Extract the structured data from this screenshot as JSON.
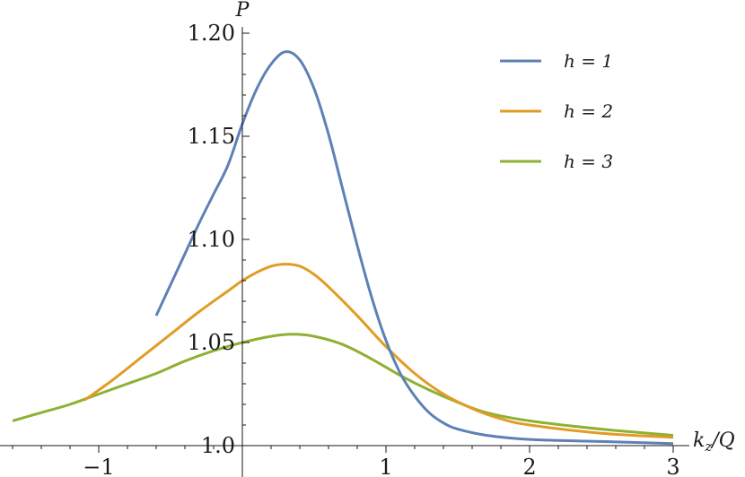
{
  "chart_data": {
    "type": "line",
    "xlabel": "k_z/Q",
    "ylabel": "P",
    "xlim": [
      -1.65,
      3.5
    ],
    "ylim": [
      0.99,
      1.205
    ],
    "x_ticks": [
      {
        "value": -1,
        "label": "−1"
      },
      {
        "value": 1,
        "label": "1"
      },
      {
        "value": 2,
        "label": "2"
      },
      {
        "value": 3,
        "label": "3"
      }
    ],
    "y_ticks": [
      {
        "value": 1.0,
        "label": "1.0"
      },
      {
        "value": 1.05,
        "label": "1.05"
      },
      {
        "value": 1.1,
        "label": "1.10"
      },
      {
        "value": 1.15,
        "label": "1.15"
      },
      {
        "value": 1.2,
        "label": "1.20"
      }
    ],
    "grid": false,
    "legend_position": "top-right",
    "series": [
      {
        "name": "h = 1",
        "color": "#5e81b5",
        "x": [
          -0.6,
          -0.5,
          -0.4,
          -0.3,
          -0.2,
          -0.1,
          0.0,
          0.1,
          0.2,
          0.3,
          0.4,
          0.5,
          0.6,
          0.7,
          0.8,
          0.9,
          1.0,
          1.1,
          1.2,
          1.3,
          1.4,
          1.5,
          1.7,
          2.0,
          2.5,
          3.0
        ],
        "y": [
          1.063,
          1.078,
          1.093,
          1.108,
          1.122,
          1.136,
          1.156,
          1.173,
          1.185,
          1.191,
          1.187,
          1.173,
          1.151,
          1.124,
          1.097,
          1.072,
          1.051,
          1.035,
          1.024,
          1.016,
          1.011,
          1.008,
          1.005,
          1.003,
          1.002,
          1.001
        ]
      },
      {
        "name": "h = 2",
        "color": "#e19c24",
        "x": [
          -1.1,
          -0.9,
          -0.7,
          -0.5,
          -0.3,
          -0.1,
          0.0,
          0.1,
          0.2,
          0.3,
          0.4,
          0.5,
          0.6,
          0.8,
          1.0,
          1.2,
          1.4,
          1.6,
          1.8,
          2.0,
          2.5,
          3.0
        ],
        "y": [
          1.022,
          1.032,
          1.043,
          1.054,
          1.065,
          1.075,
          1.08,
          1.084,
          1.087,
          1.088,
          1.087,
          1.083,
          1.077,
          1.063,
          1.048,
          1.035,
          1.025,
          1.018,
          1.013,
          1.01,
          1.006,
          1.004
        ]
      },
      {
        "name": "h = 3",
        "color": "#8fb032",
        "x": [
          -1.6,
          -1.4,
          -1.2,
          -1.0,
          -0.8,
          -0.6,
          -0.4,
          -0.2,
          0.0,
          0.2,
          0.35,
          0.5,
          0.7,
          0.9,
          1.1,
          1.3,
          1.5,
          1.7,
          2.0,
          2.5,
          3.0
        ],
        "y": [
          1.012,
          1.016,
          1.02,
          1.025,
          1.03,
          1.035,
          1.041,
          1.046,
          1.05,
          1.053,
          1.054,
          1.053,
          1.049,
          1.042,
          1.034,
          1.027,
          1.021,
          1.016,
          1.012,
          1.008,
          1.005
        ]
      }
    ]
  }
}
